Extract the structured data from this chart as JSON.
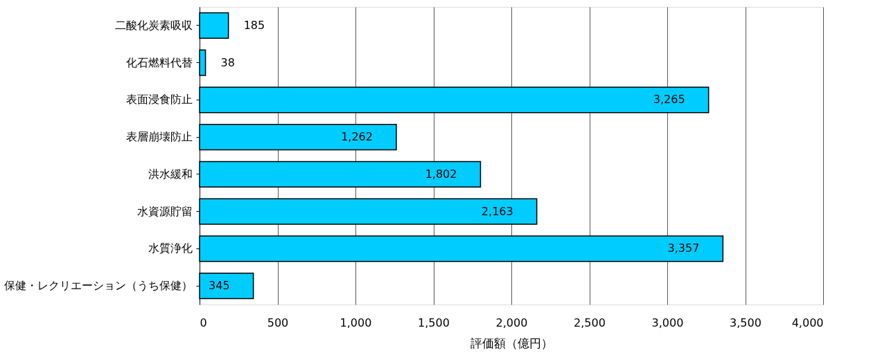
{
  "chart_data": {
    "type": "bar",
    "orientation": "horizontal",
    "categories": [
      "二酸化炭素吸収",
      "化石燃料代替",
      "表面浸食防止",
      "表層崩壊防止",
      "洪水緩和",
      "水資源貯留",
      "水質浄化",
      "保健・レクリエーション（うち保健）"
    ],
    "values": [
      185,
      38,
      3265,
      1262,
      1802,
      2163,
      3357,
      345
    ],
    "value_labels": [
      "185",
      "38",
      "3,265",
      "1,262",
      "1,802",
      "2,163",
      "3,357",
      "345"
    ],
    "color": "#00ccff",
    "xlabel": "評価額（億円）",
    "xlim": [
      0,
      4000
    ],
    "xticks": [
      0,
      500,
      {
        "value": 1000,
        "label": "1,000"
      },
      {
        "value": 1500,
        "label": "1,500"
      },
      {
        "value": 2000,
        "label": "2,000"
      },
      {
        "value": 2500,
        "label": "2,500"
      },
      {
        "value": 3000,
        "label": "3,000"
      },
      {
        "value": 3500,
        "label": "3,500"
      },
      {
        "value": 4000,
        "label": "4,000"
      }
    ],
    "grid": "x"
  }
}
